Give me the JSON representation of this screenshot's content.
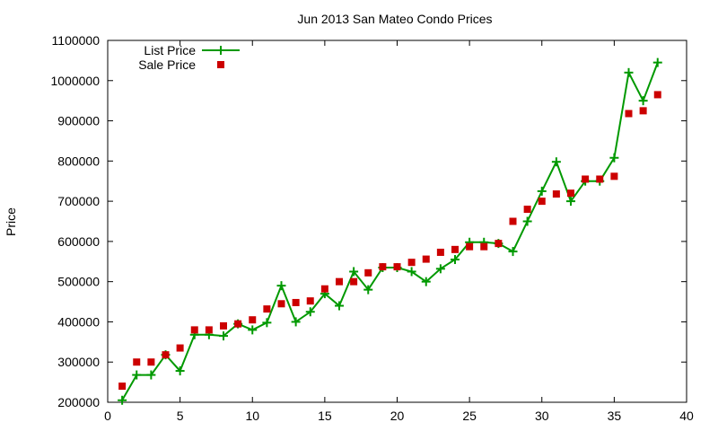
{
  "chart_data": {
    "type": "line",
    "title": "Jun 2013 San Mateo Condo Prices",
    "xlabel": "",
    "ylabel": "Price",
    "xlim": [
      0,
      40
    ],
    "ylim": [
      200000,
      1100000
    ],
    "x_ticks": [
      "0",
      "5",
      "10",
      "15",
      "20",
      "25",
      "30",
      "35",
      "40"
    ],
    "y_ticks": [
      "200000",
      "300000",
      "400000",
      "500000",
      "600000",
      "700000",
      "800000",
      "900000",
      "1000000",
      "1100000"
    ],
    "legend_position": "top-left",
    "grid": false,
    "series": [
      {
        "name": "List Price",
        "style": "line+cross",
        "color": "#009900",
        "x": [
          1,
          2,
          3,
          4,
          5,
          6,
          7,
          8,
          9,
          10,
          11,
          12,
          13,
          14,
          15,
          16,
          17,
          18,
          19,
          20,
          21,
          22,
          23,
          24,
          25,
          26,
          27,
          28,
          29,
          30,
          31,
          32,
          33,
          34,
          35,
          36,
          37,
          38
        ],
        "values": [
          205000,
          268000,
          268000,
          318000,
          278000,
          368000,
          368000,
          365000,
          395000,
          380000,
          398000,
          490000,
          400000,
          425000,
          470000,
          440000,
          525000,
          480000,
          535000,
          535000,
          525000,
          500000,
          532000,
          555000,
          598000,
          598000,
          595000,
          575000,
          650000,
          725000,
          798000,
          700000,
          750000,
          750000,
          808000,
          1020000,
          950000,
          1045000
        ]
      },
      {
        "name": "Sale Price",
        "style": "square",
        "color": "#cc0000",
        "x": [
          1,
          2,
          3,
          4,
          5,
          6,
          7,
          8,
          9,
          10,
          11,
          12,
          13,
          14,
          15,
          16,
          17,
          18,
          19,
          20,
          21,
          22,
          23,
          24,
          25,
          26,
          27,
          28,
          29,
          30,
          31,
          32,
          33,
          34,
          35,
          36,
          37,
          38
        ],
        "values": [
          240000,
          300000,
          300000,
          318000,
          335000,
          380000,
          380000,
          390000,
          395000,
          405000,
          432000,
          445000,
          448000,
          452000,
          482000,
          500000,
          500000,
          522000,
          537000,
          537000,
          548000,
          556000,
          573000,
          580000,
          587000,
          587000,
          595000,
          650000,
          680000,
          700000,
          718000,
          720000,
          755000,
          755000,
          762000,
          918000,
          925000,
          965000
        ]
      }
    ]
  }
}
